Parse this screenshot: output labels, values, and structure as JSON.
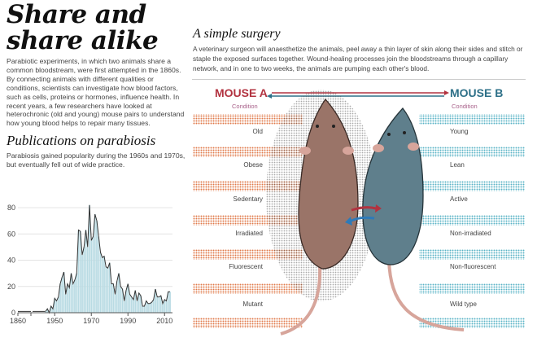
{
  "title": "Share and share alike",
  "intro": "Parabiotic experiments, in which two animals share a common bloodstream, were first attempted in the 1860s. By connecting animals with different qualities or conditions, scientists can investigate how blood factors, such as cells, proteins or hormones, influence health. In recent years, a few researchers have looked at heterochronic (old and young) mouse pairs to understand how young blood helps to repair many tissues.",
  "publications": {
    "title": "Publications on parabiosis",
    "subtitle": "Parabiosis gained popularity during the 1960s and 1970s, but eventually fell out of wide practice."
  },
  "surgery": {
    "title": "A simple surgery",
    "text": "A veterinary surgeon will anaesthetize the animals, peel away a thin layer of skin along their sides and stitch or staple the exposed surfaces together. Wound-healing processes join the bloodstreams through a capillary network, and in one to two weeks, the animals are pumping each other's blood."
  },
  "mouse_a": {
    "label": "MOUSE A",
    "condition_label": "Condition",
    "color": "#b23340",
    "body_color": "#9a7468",
    "conditions": [
      "Old",
      "Obese",
      "Sedentary",
      "Irradiated",
      "Fluorescent",
      "Mutant"
    ]
  },
  "mouse_b": {
    "label": "MOUSE B",
    "condition_label": "Condition",
    "color": "#2e7088",
    "body_color": "#5f7f8c",
    "conditions": [
      "Young",
      "Lean",
      "Active",
      "Non-irradiated",
      "Non-fluorescent",
      "Wild type"
    ]
  },
  "chart_data": {
    "type": "area",
    "title": "Publications on parabiosis",
    "x_tick_labels": [
      "1860",
      "1950",
      "1970",
      "1990",
      "2010"
    ],
    "y_tick_labels": [
      "0",
      "20",
      "40",
      "60",
      "80"
    ],
    "ylim": [
      0,
      85
    ],
    "x_axis_broken": true,
    "grid": true,
    "fill_color": "#b9dbe3",
    "line_color": "#333333",
    "early_years": [
      1860,
      1900,
      1905,
      1944
    ],
    "early_values": [
      1,
      1,
      1,
      1
    ],
    "years": [
      1945,
      1946,
      1947,
      1948,
      1949,
      1950,
      1951,
      1952,
      1953,
      1954,
      1955,
      1956,
      1957,
      1958,
      1959,
      1960,
      1961,
      1962,
      1963,
      1964,
      1965,
      1966,
      1967,
      1968,
      1969,
      1970,
      1971,
      1972,
      1973,
      1974,
      1975,
      1976,
      1977,
      1978,
      1979,
      1980,
      1981,
      1982,
      1983,
      1984,
      1985,
      1986,
      1987,
      1988,
      1989,
      1990,
      1991,
      1992,
      1993,
      1994,
      1995,
      1996,
      1997,
      1998,
      1999,
      2000,
      2001,
      2002,
      2003,
      2004,
      2005,
      2006,
      2007,
      2008,
      2009,
      2010,
      2011,
      2012,
      2013
    ],
    "values": [
      1,
      3,
      0,
      5,
      3,
      11,
      9,
      12,
      22,
      27,
      31,
      14,
      22,
      19,
      30,
      22,
      25,
      30,
      63,
      62,
      44,
      50,
      63,
      50,
      82,
      55,
      58,
      75,
      70,
      58,
      46,
      42,
      43,
      35,
      34,
      38,
      22,
      22,
      14,
      24,
      30,
      20,
      18,
      9,
      17,
      22,
      14,
      12,
      10,
      17,
      9,
      15,
      13,
      5,
      5,
      9,
      7,
      7,
      8,
      10,
      18,
      12,
      12,
      13,
      7,
      10,
      9,
      16,
      16
    ]
  }
}
